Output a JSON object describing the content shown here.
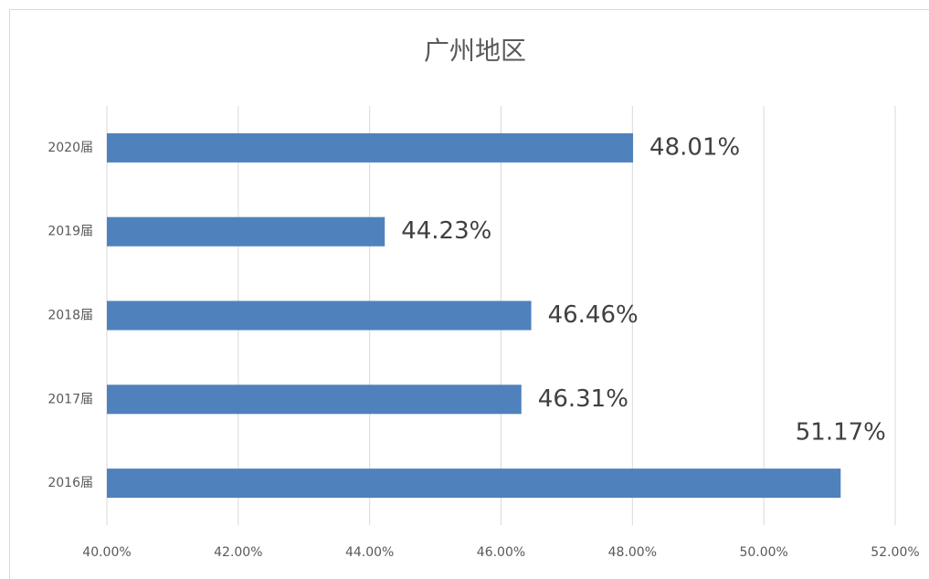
{
  "chart_data": {
    "type": "hbar",
    "title": "广州地区",
    "categories": [
      "2020届",
      "2019届",
      "2018届",
      "2017届",
      "2016届"
    ],
    "values": [
      48.01,
      44.23,
      46.46,
      46.31,
      51.17
    ],
    "value_labels": [
      "48.01%",
      "44.23%",
      "46.46%",
      "46.31%",
      "51.17%"
    ],
    "color": "#4f81bd",
    "xlim": [
      40,
      52
    ],
    "xticks": [
      {
        "value": 40,
        "label": "40.00%"
      },
      {
        "value": 42,
        "label": "42.00%"
      },
      {
        "value": 44,
        "label": "44.00%"
      },
      {
        "value": 46,
        "label": "46.00%"
      },
      {
        "value": 48,
        "label": "48.00%"
      },
      {
        "value": 50,
        "label": "50.00%"
      },
      {
        "value": 52,
        "label": "52.00%"
      }
    ],
    "grid": true
  }
}
